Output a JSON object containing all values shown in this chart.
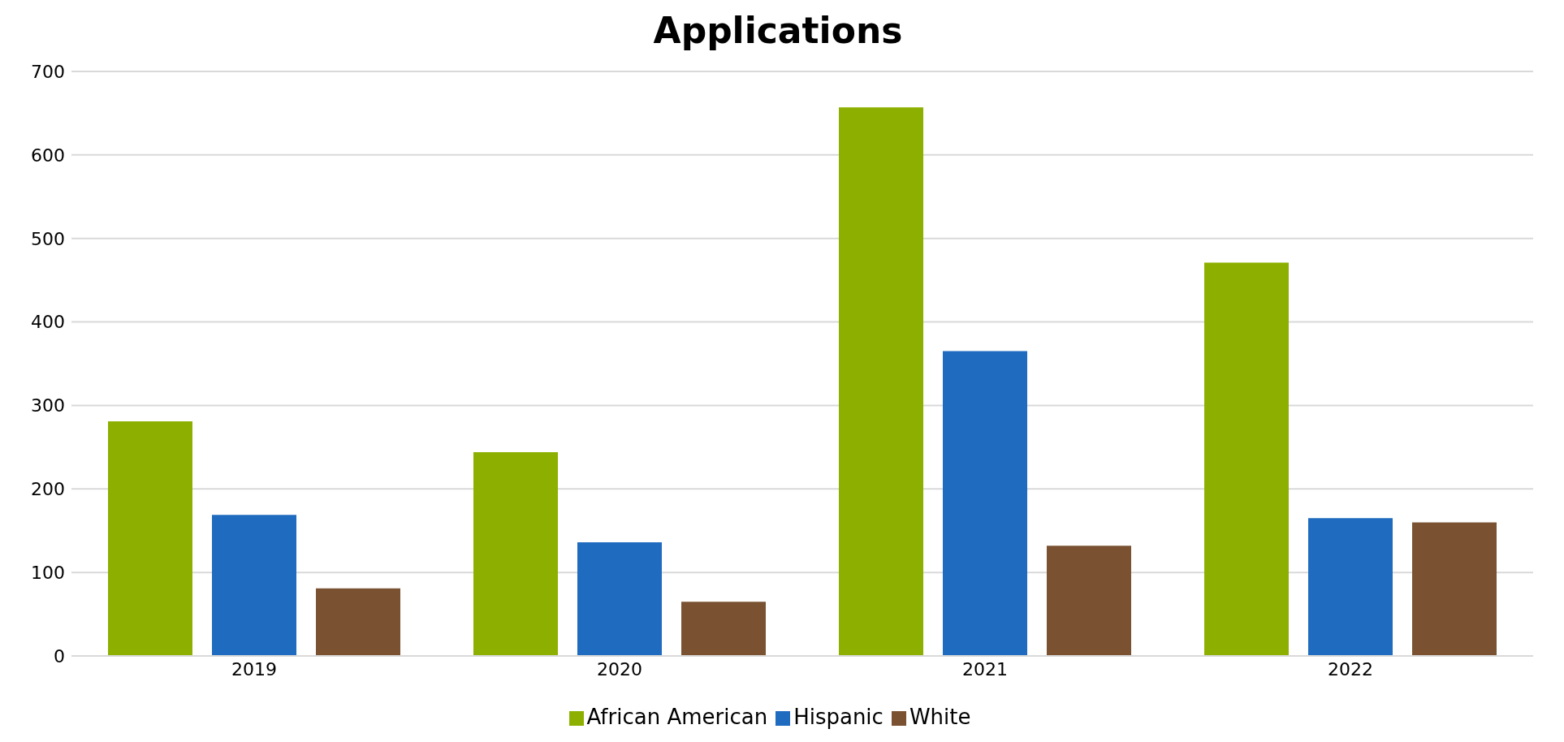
{
  "chart_data": {
    "type": "bar",
    "title": "Applications",
    "categories": [
      "2019",
      "2020",
      "2021",
      "2022"
    ],
    "series": [
      {
        "name": "African American",
        "color": "#8db000",
        "values": [
          281,
          244,
          657,
          471
        ]
      },
      {
        "name": "Hispanic",
        "color": "#1f6bbf",
        "values": [
          169,
          136,
          365,
          165
        ]
      },
      {
        "name": "White",
        "color": "#7a5232",
        "values": [
          81,
          65,
          132,
          160
        ]
      }
    ],
    "ylim": [
      0,
      700
    ],
    "yticks": [
      0,
      100,
      200,
      300,
      400,
      500,
      600,
      700
    ],
    "grid": "y",
    "legend": "bottom"
  }
}
